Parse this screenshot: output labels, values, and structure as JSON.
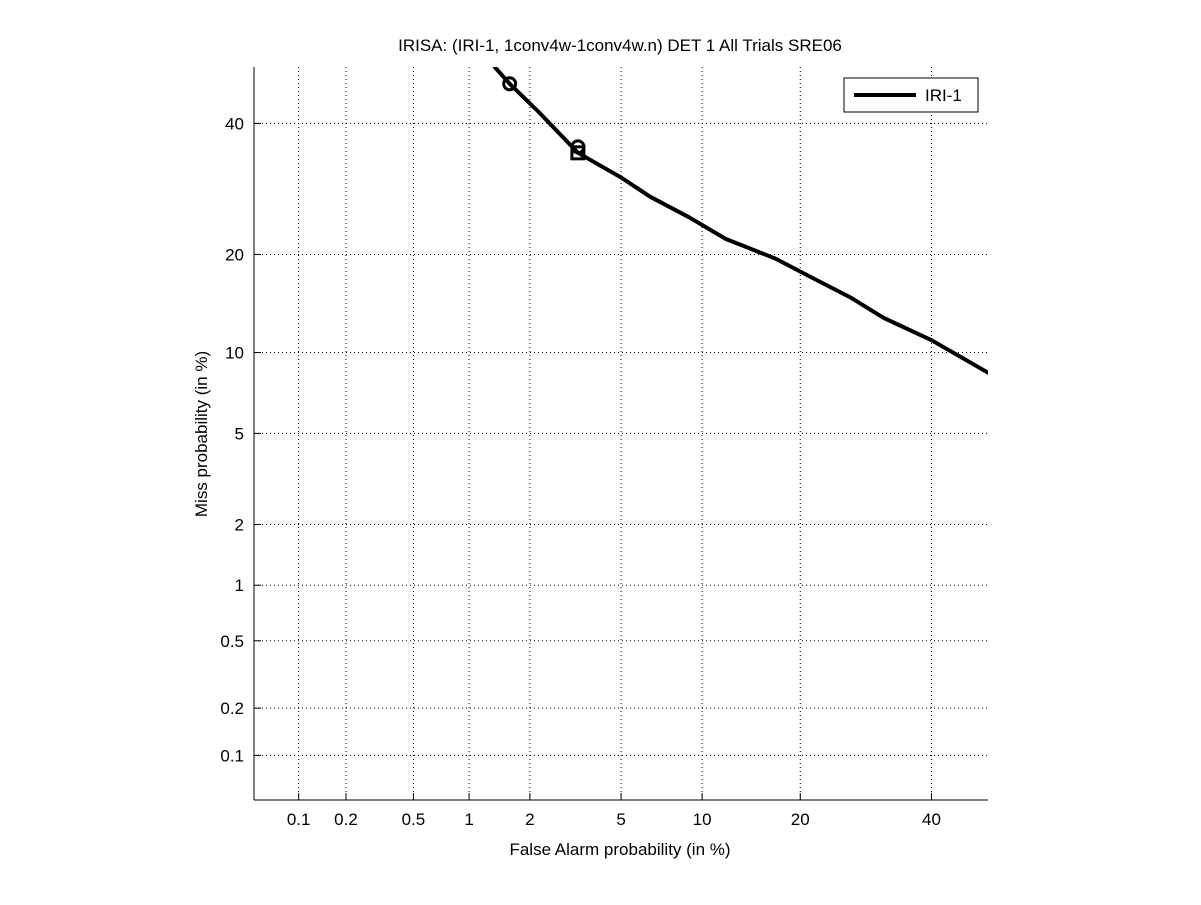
{
  "chart_data": {
    "type": "line",
    "title": "IRISA: (IRI-1, 1conv4w-1conv4w.n) DET 1 All Trials SRE06",
    "xlabel": "False Alarm probability (in %)",
    "ylabel": "Miss probability (in %)",
    "x_scale": "probit",
    "y_scale": "probit",
    "xlim": [
      0.05,
      50
    ],
    "ylim": [
      0.05,
      50
    ],
    "grid": true,
    "x_ticks": [
      0.1,
      0.2,
      0.5,
      1,
      2,
      5,
      10,
      20,
      40
    ],
    "x_tick_labels": [
      "0.1",
      "0.2",
      "0.5",
      "1",
      "2",
      "5",
      "10",
      "20",
      "40"
    ],
    "y_ticks": [
      0.1,
      0.2,
      0.5,
      1,
      2,
      5,
      10,
      20,
      40
    ],
    "y_tick_labels": [
      "0.1",
      "0.2",
      "0.5",
      "1",
      "2",
      "5",
      "10",
      "20",
      "40"
    ],
    "legend": {
      "position": "top-right",
      "entries": [
        "IRI-1"
      ]
    },
    "series": [
      {
        "name": "IRI-1",
        "color": "#000000",
        "x": [
          1.35,
          1.6,
          2.2,
          3.3,
          5.0,
          6.5,
          9.0,
          12.0,
          17.0,
          22.0,
          27.0,
          32.0,
          40.0,
          50.0
        ],
        "y": [
          50.0,
          47.0,
          42.0,
          35.0,
          31.0,
          28.0,
          25.0,
          22.0,
          19.5,
          17.0,
          15.0,
          13.0,
          11.0,
          8.5
        ]
      }
    ],
    "markers": [
      {
        "shape": "circle",
        "x": 1.6,
        "y": 47.0
      },
      {
        "shape": "circle",
        "x": 3.3,
        "y": 36.0
      },
      {
        "shape": "square",
        "x": 3.3,
        "y": 35.0
      }
    ]
  }
}
